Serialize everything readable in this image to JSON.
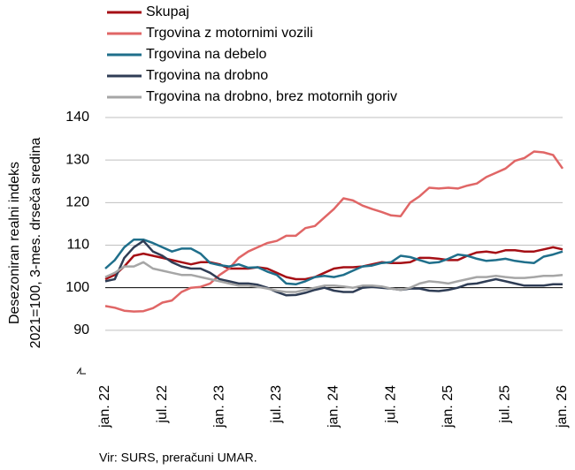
{
  "chart_data": {
    "type": "line",
    "ylabel": [
      "Desezoniran realni indeks",
      "2021=100, 3-mes. drseča sredina"
    ],
    "source": "Vir: SURS, preračuni UMAR.",
    "categories": [
      "jan. 22",
      null,
      null,
      null,
      null,
      null,
      "jul. 22",
      null,
      null,
      null,
      null,
      null,
      "jan. 23",
      null,
      null,
      null,
      null,
      null,
      "jul. 23",
      null,
      null,
      null,
      null,
      null,
      "jan. 24",
      null,
      null,
      null,
      null,
      null,
      "jul. 24",
      null,
      null,
      null,
      null,
      null,
      "jan. 25",
      null,
      null,
      null,
      null,
      null,
      "jul. 25",
      null,
      null,
      null,
      null,
      null,
      "jan. 26"
    ],
    "ylim": [
      80,
      140
    ],
    "yticks": [
      90,
      100,
      110,
      120,
      130,
      140
    ],
    "grid": true,
    "baseline": 100,
    "legend": "top-left",
    "series": [
      {
        "name": "Skupaj",
        "color": "#a50f15",
        "values": [
          102,
          103,
          105,
          107.5,
          108,
          107.5,
          107,
          106.5,
          106,
          105.5,
          106,
          106,
          105.5,
          104.5,
          104.5,
          104.5,
          104.8,
          104.5,
          103.5,
          102.5,
          102,
          102,
          102.5,
          103.5,
          104.5,
          104.8,
          104.8,
          105,
          105.5,
          106,
          105.8,
          105.8,
          106,
          107,
          107,
          106.8,
          106.5,
          106.5,
          107.5,
          108.3,
          108.5,
          108.2,
          108.8,
          108.8,
          108.5,
          108.5,
          109,
          109.5,
          109
        ]
      },
      {
        "name": "Trgovina z motornimi vozili",
        "color": "#e06666",
        "values": [
          95.7,
          95.3,
          94.6,
          94.4,
          94.5,
          95.2,
          96.5,
          97,
          99,
          100,
          100.2,
          101,
          103,
          104.5,
          107,
          108.5,
          109.5,
          110.5,
          111,
          112.2,
          112.2,
          114,
          114.5,
          116.5,
          118.5,
          121,
          120.5,
          119.3,
          118.5,
          117.8,
          117,
          116.8,
          120,
          121.5,
          123.5,
          123.3,
          123.5,
          123.3,
          124,
          124.5,
          126,
          127,
          128,
          129.8,
          130.5,
          132,
          131.8,
          131.2,
          128
        ]
      },
      {
        "name": "Trgovina na debelo",
        "color": "#1f6f8b",
        "values": [
          104.5,
          106.5,
          109.5,
          111.3,
          111.3,
          110.5,
          109.5,
          108.5,
          109.2,
          109.2,
          108,
          105.8,
          105.3,
          105,
          105.5,
          104.7,
          104.8,
          103.8,
          103,
          101,
          100.8,
          101.5,
          102.5,
          102.8,
          102.5,
          103,
          104,
          105,
          105.2,
          105.8,
          106,
          107.5,
          107.2,
          106.5,
          105.8,
          106,
          106.8,
          107.8,
          107.5,
          106.8,
          106.3,
          106.5,
          106.8,
          106.3,
          106,
          105.8,
          107.3,
          107.8,
          108.5
        ]
      },
      {
        "name": "Trgovina na drobno",
        "color": "#2f3d55",
        "values": [
          101.5,
          102,
          107,
          109.5,
          111,
          108.5,
          107.5,
          106,
          105,
          104.5,
          104.5,
          103.5,
          102,
          101.5,
          101,
          101,
          100.7,
          100,
          99,
          98.2,
          98.3,
          98.8,
          99.5,
          100,
          99.3,
          99,
          99,
          100,
          100.2,
          100,
          99.8,
          99.5,
          99.8,
          99.8,
          99.3,
          99.2,
          99.5,
          100,
          100.8,
          101,
          101.5,
          102,
          101.5,
          101,
          100.5,
          100.5,
          100.5,
          100.8,
          100.8
        ]
      },
      {
        "name": "Trgovina na drobno, brez motornih goriv",
        "color": "#a6a6a6",
        "values": [
          102.5,
          103.5,
          105,
          105,
          106,
          104.5,
          104,
          103.5,
          103,
          103,
          102.5,
          102,
          101.5,
          101,
          100.5,
          100.5,
          100.2,
          99.8,
          99.3,
          99,
          99,
          99.5,
          100,
          100.5,
          100.5,
          100.3,
          100,
          100.5,
          100.5,
          100.3,
          99.8,
          99.5,
          100,
          101,
          101.5,
          101.3,
          101,
          101.5,
          102,
          102.5,
          102.5,
          102.8,
          102.5,
          102.3,
          102.3,
          102.5,
          102.8,
          102.8,
          103
        ]
      }
    ]
  }
}
